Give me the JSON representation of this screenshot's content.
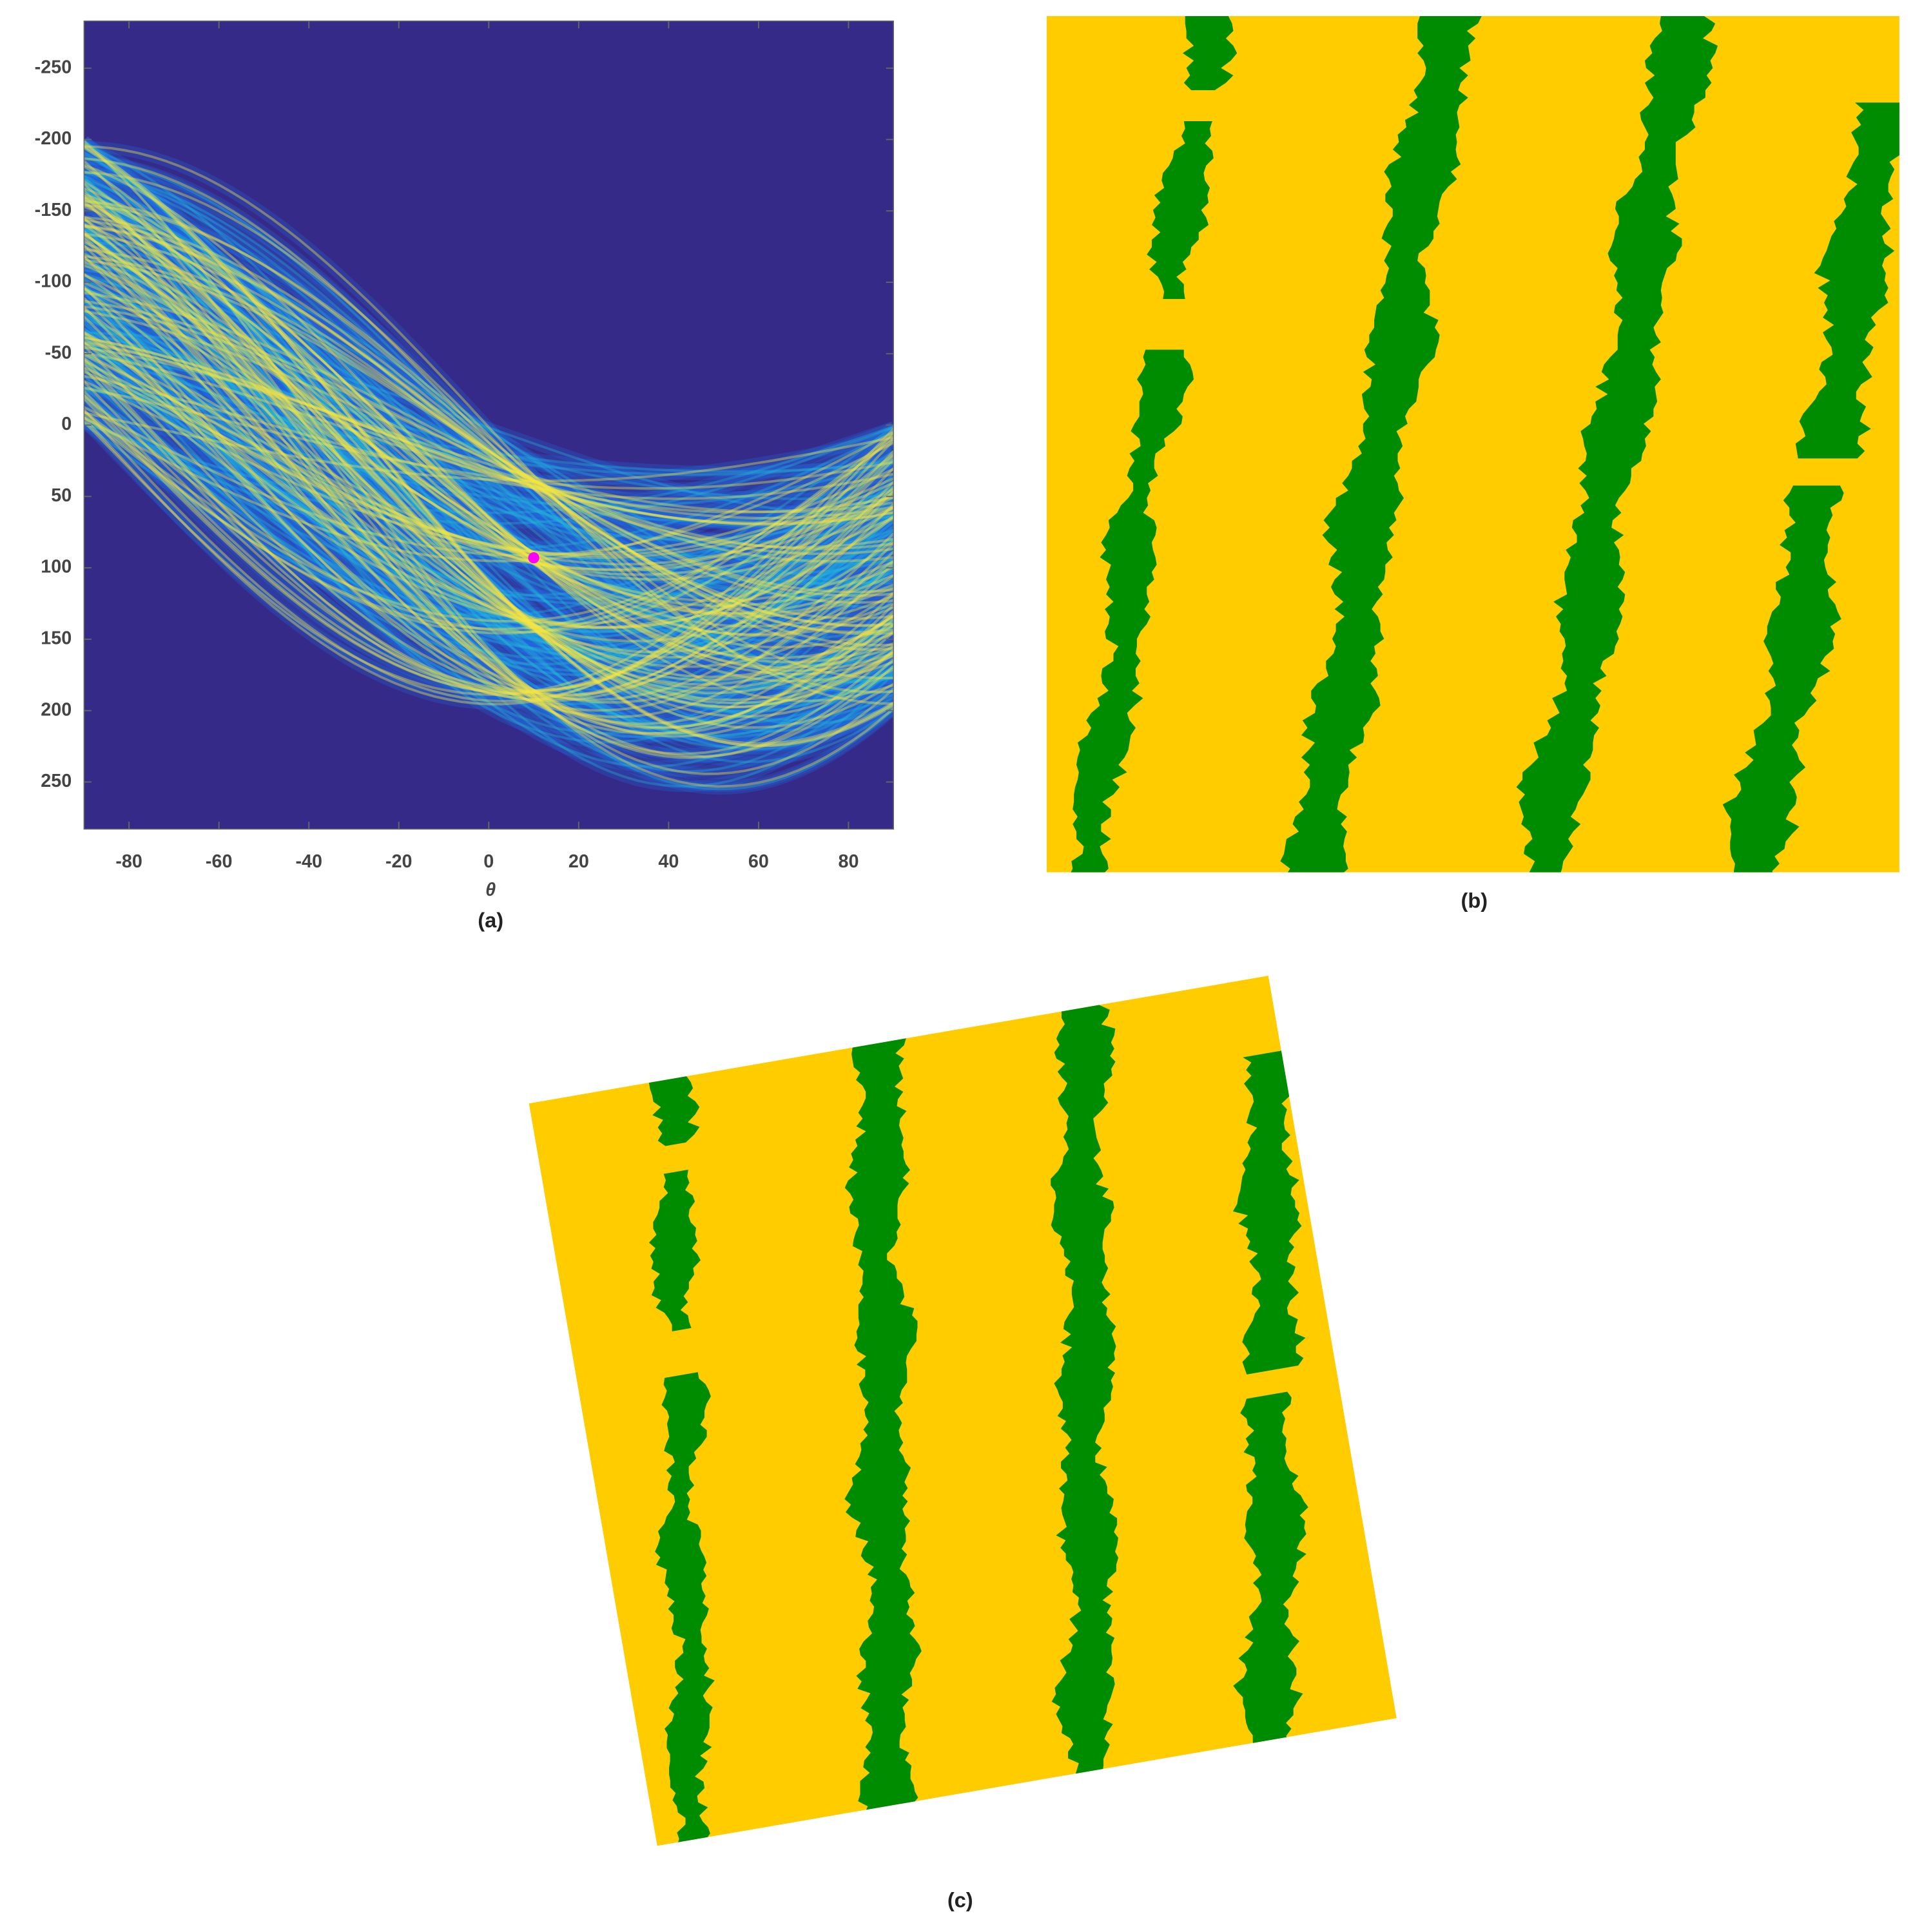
{
  "chart_data": {
    "type": "hough",
    "xlabel": "θ",
    "caption": "(a)",
    "xlim": [
      -90,
      90
    ],
    "xticks": [
      -80,
      -60,
      -40,
      -20,
      0,
      20,
      40,
      60,
      80
    ],
    "ylim": [
      -283,
      283
    ],
    "yticks": [
      -250,
      -200,
      -150,
      -100,
      -50,
      0,
      50,
      100,
      150,
      200,
      250
    ],
    "y_reversed": true,
    "background": "#352a87",
    "peak": {
      "x": 10,
      "y": 93,
      "color": "#ff00ff"
    }
  },
  "panels": [
    {
      "caption": "(b)"
    },
    {
      "caption": "(c)"
    }
  ]
}
